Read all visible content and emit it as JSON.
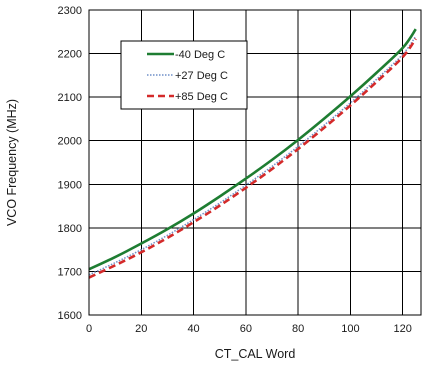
{
  "chart_data": {
    "type": "line",
    "title": "",
    "xlabel": "CT_CAL Word",
    "ylabel": "VCO Frequency (MHz)",
    "xlim": [
      0,
      127
    ],
    "ylim": [
      1600,
      2300
    ],
    "x_ticks": [
      0,
      20,
      40,
      60,
      80,
      100,
      120
    ],
    "y_ticks": [
      1600,
      1700,
      1800,
      1900,
      2000,
      2100,
      2200,
      2300
    ],
    "grid": true,
    "legend_position": "upper-left",
    "x": [
      0,
      10,
      20,
      30,
      40,
      50,
      60,
      70,
      80,
      90,
      100,
      110,
      120,
      125
    ],
    "series": [
      {
        "name": "-40 Deg C",
        "color": "#1e7d32",
        "style": "solid",
        "values": [
          1705,
          1733,
          1764,
          1797,
          1833,
          1872,
          1913,
          1956,
          2002,
          2051,
          2102,
          2156,
          2213,
          2256
        ]
      },
      {
        "name": "+27 Deg C",
        "color": "#6f8fc8",
        "style": "dotted",
        "values": [
          1692,
          1720,
          1750,
          1783,
          1819,
          1857,
          1898,
          1941,
          1987,
          2036,
          2087,
          2141,
          2198,
          2240
        ]
      },
      {
        "name": "+85 Deg C",
        "color": "#d42a2a",
        "style": "dashed",
        "values": [
          1686,
          1714,
          1744,
          1777,
          1813,
          1851,
          1892,
          1935,
          1981,
          2030,
          2081,
          2135,
          2192,
          2234
        ]
      }
    ]
  }
}
